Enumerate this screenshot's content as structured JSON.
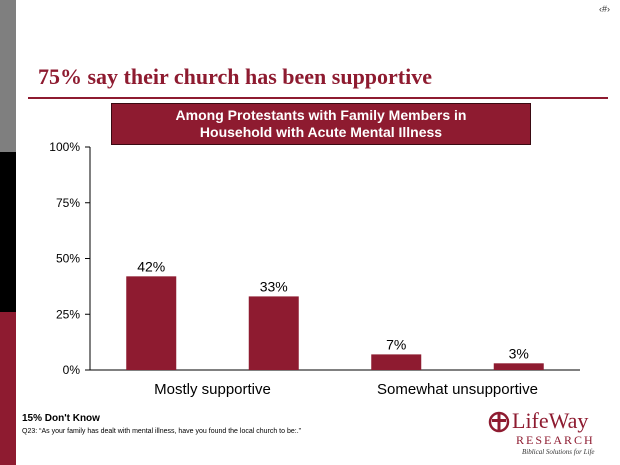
{
  "slide_number": "‹#›",
  "title": "75% say their church has been supportive",
  "banner": {
    "line1": "Among Protestants with Family Members in",
    "line2": "Household with Acute Mental Illness"
  },
  "chart_data": {
    "type": "bar",
    "categories": [
      "Mostly supportive",
      "",
      "Somewhat unsupportive",
      ""
    ],
    "category_labels": [
      "Mostly supportive",
      "Somewhat unsupportive"
    ],
    "values": [
      42,
      33,
      7,
      3
    ],
    "value_labels": [
      "42%",
      "33%",
      "7%",
      "3%"
    ],
    "ylim": [
      0,
      100
    ],
    "yticks": [
      "0%",
      "25%",
      "50%",
      "75%",
      "100%"
    ],
    "bar_color": "#8e1b30",
    "grid": false
  },
  "footnotes": {
    "dont_know": "15% Don't Know",
    "question": "Q23: “As your family has dealt with mental illness, have you found the local church to be:.”"
  },
  "logo": {
    "name": "LifeWay",
    "research": "RESEARCH",
    "tagline": "Biblical Solutions for Life",
    "color": "#8e1b30"
  }
}
